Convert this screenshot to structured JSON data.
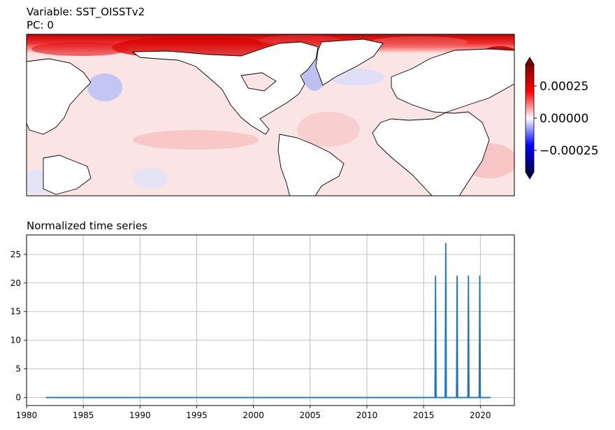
{
  "header": {
    "variable_line": "Variable: SST_OISSTv2",
    "pc_line": "PC: 0"
  },
  "colorbar": {
    "colormap": "seismic",
    "extend": "both",
    "ticks": [
      0.00025,
      0.0,
      -0.00025
    ],
    "tick_labels": [
      "0.00025",
      "0.00000",
      "−0.00025"
    ],
    "range": [
      -0.0004,
      0.0004
    ]
  },
  "map": {
    "projection": "PlateCarree (Pacific-centered)",
    "coastlines": true
  },
  "colors": {
    "series": "#1f77b4",
    "grid": "#b0b0b0",
    "max": "#800000",
    "min": "#00006b"
  },
  "chart_data": [
    {
      "type": "heatmap",
      "title": "",
      "description_values": "SST_OISSTv2 PC 0 spatial pattern"
    },
    {
      "type": "line",
      "title": "Normalized time series",
      "xlabel": "",
      "ylabel": "",
      "xlim": [
        1980,
        2023
      ],
      "ylim": [
        -1.4,
        28.4
      ],
      "grid": true,
      "x_ticks": [
        1980,
        1985,
        1990,
        1995,
        2000,
        2005,
        2010,
        2015,
        2020
      ],
      "y_ticks": [
        0,
        5,
        10,
        15,
        20,
        25
      ],
      "series": [
        {
          "x": [
            1981.7,
            2016.0,
            2016.05,
            2016.1,
            2016.9,
            2016.95,
            2017.0,
            2017.9,
            2017.95,
            2018.0,
            2018.9,
            2018.95,
            2019.0,
            2019.9,
            2019.95,
            2020.0,
            2020.9
          ],
          "values": [
            0,
            0,
            21.3,
            0,
            0,
            27.0,
            0,
            0,
            21.3,
            0,
            0,
            21.3,
            0,
            0,
            21.3,
            0,
            0
          ]
        }
      ]
    }
  ]
}
